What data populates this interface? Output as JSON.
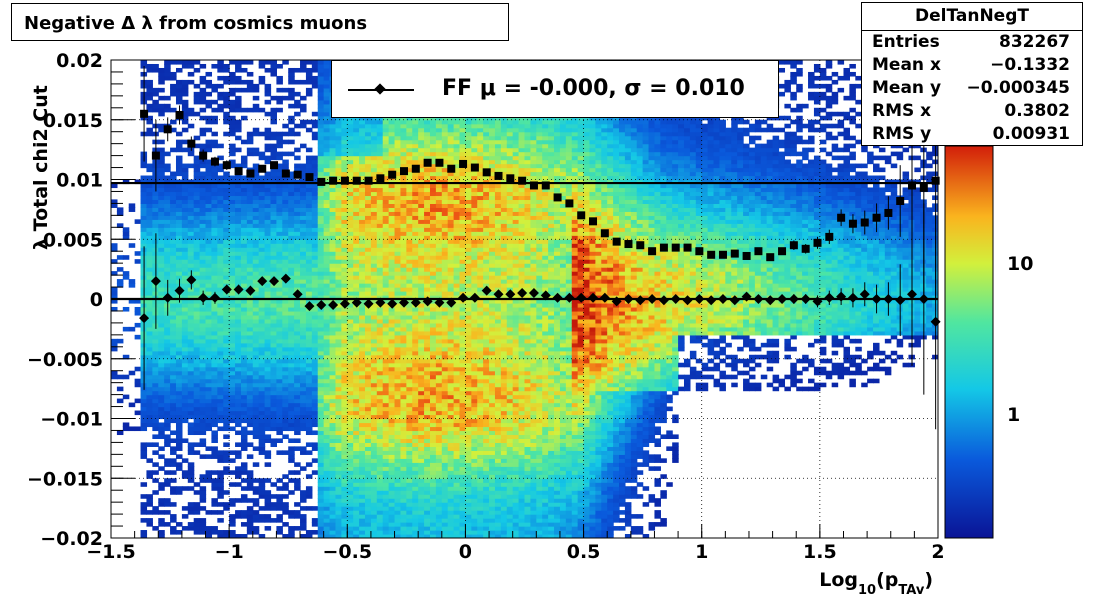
{
  "title": "Negative Δ λ from cosmics muons",
  "stats": {
    "name": "DelTanNegT",
    "rows": [
      {
        "key": "Entries",
        "value": "832267"
      },
      {
        "key": "Mean x",
        "value": "−0.1332"
      },
      {
        "key": "Mean y",
        "value": "−0.000345"
      },
      {
        "key": "RMS x",
        "value": "0.3802"
      },
      {
        "key": "RMS y",
        "value": "0.00931"
      }
    ]
  },
  "legend": {
    "label": "FF μ = -0.000, σ =   0.010"
  },
  "colors": {
    "marker": "#000000",
    "hot": "#c81e0a",
    "cold": "#0a1496"
  },
  "chart_data": {
    "type": "heatmap",
    "title": "Negative Δ λ from cosmics muons",
    "xlabel_main": "Log",
    "xlabel_sub": "10",
    "xlabel_rest": "(p",
    "xlabel_sub2": "TAv",
    "xlabel_close": ")",
    "ylabel": "λ Total chi2 Cut",
    "xlim": [
      -1.5,
      2
    ],
    "ylim": [
      -0.02,
      0.02
    ],
    "x_ticks": [
      {
        "v": -1.5,
        "label": "−1.5"
      },
      {
        "v": -1,
        "label": "−1"
      },
      {
        "v": -0.5,
        "label": "−0.5"
      },
      {
        "v": 0,
        "label": "0"
      },
      {
        "v": 0.5,
        "label": "0.5"
      },
      {
        "v": 1,
        "label": "1"
      },
      {
        "v": 1.5,
        "label": "1.5"
      },
      {
        "v": 2,
        "label": "2"
      }
    ],
    "y_ticks": [
      {
        "v": 0.02,
        "label": "0.02"
      },
      {
        "v": 0.015,
        "label": "0.015"
      },
      {
        "v": 0.01,
        "label": "0.01"
      },
      {
        "v": 0.005,
        "label": "0.005"
      },
      {
        "v": 0,
        "label": "0"
      },
      {
        "v": -0.005,
        "label": "−0.005"
      },
      {
        "v": -0.01,
        "label": "−0.01"
      },
      {
        "v": -0.015,
        "label": "−0.015"
      },
      {
        "v": -0.02,
        "label": "−0.02"
      }
    ],
    "z_scale": "log",
    "z_ticks": [
      {
        "v": 1,
        "label": "1"
      },
      {
        "v": 10,
        "label": "10"
      }
    ],
    "grid": true,
    "fit_lines": [
      0.0097,
      0.0
    ],
    "series": [
      {
        "role": "sigma",
        "marker": "square",
        "x": [
          -1.36,
          -1.31,
          -1.26,
          -1.21,
          -1.16,
          -1.11,
          -1.06,
          -1.01,
          -0.96,
          -0.91,
          -0.86,
          -0.81,
          -0.76,
          -0.71,
          -0.66,
          -0.61,
          -0.56,
          -0.51,
          -0.46,
          -0.41,
          -0.36,
          -0.31,
          -0.26,
          -0.21,
          -0.16,
          -0.11,
          -0.06,
          -0.01,
          0.04,
          0.09,
          0.14,
          0.19,
          0.24,
          0.29,
          0.34,
          0.39,
          0.44,
          0.49,
          0.54,
          0.59,
          0.64,
          0.69,
          0.74,
          0.79,
          0.84,
          0.89,
          0.94,
          0.99,
          1.04,
          1.09,
          1.14,
          1.19,
          1.24,
          1.29,
          1.34,
          1.39,
          1.44,
          1.49,
          1.54,
          1.59,
          1.64,
          1.69,
          1.74,
          1.79,
          1.84,
          1.89,
          1.94,
          1.99
        ],
        "y": [
          0.0155,
          0.012,
          0.0142,
          0.0154,
          0.013,
          0.012,
          0.0115,
          0.0112,
          0.0107,
          0.0105,
          0.0109,
          0.0112,
          0.0105,
          0.0104,
          0.0102,
          0.0098,
          0.0099,
          0.0099,
          0.0099,
          0.0099,
          0.0101,
          0.0104,
          0.0107,
          0.0109,
          0.0114,
          0.0114,
          0.0109,
          0.0113,
          0.011,
          0.0106,
          0.0103,
          0.0101,
          0.0099,
          0.0095,
          0.0095,
          0.0085,
          0.008,
          0.007,
          0.0065,
          0.0055,
          0.0048,
          0.0046,
          0.0045,
          0.004,
          0.0043,
          0.0043,
          0.0043,
          0.004,
          0.0037,
          0.0037,
          0.0038,
          0.0036,
          0.004,
          0.0035,
          0.004,
          0.0045,
          0.0042,
          0.0047,
          0.0052,
          0.0068,
          0.0063,
          0.0064,
          0.0068,
          0.0072,
          0.0082,
          0.0095,
          0.0093,
          0.0099
        ],
        "err": [
          0.004,
          0.003,
          0.001,
          0.0008,
          0.0006,
          0.0005,
          0.0004,
          0.0004,
          0.0003,
          0.0003,
          0.0003,
          0.0003,
          0.0003,
          0.0002,
          0.0002,
          0.0002,
          0.0002,
          0.0002,
          0.0002,
          0.0002,
          0.0002,
          0.0002,
          0.0002,
          0.0002,
          0.0002,
          0.0002,
          0.0002,
          0.0002,
          0.0002,
          0.0002,
          0.0002,
          0.0002,
          0.0002,
          0.0002,
          0.0002,
          0.0002,
          0.0002,
          0.0002,
          0.0002,
          0.0002,
          0.0002,
          0.0002,
          0.0002,
          0.0002,
          0.0002,
          0.0002,
          0.0002,
          0.0002,
          0.0002,
          0.0002,
          0.0002,
          0.0002,
          0.0003,
          0.0003,
          0.0003,
          0.0004,
          0.0004,
          0.0005,
          0.0006,
          0.0007,
          0.0008,
          0.001,
          0.0012,
          0.0014,
          0.003,
          0.006,
          0.009,
          0.01
        ]
      },
      {
        "role": "mean",
        "marker": "diamond",
        "x": [
          -1.36,
          -1.31,
          -1.26,
          -1.21,
          -1.16,
          -1.11,
          -1.06,
          -1.01,
          -0.96,
          -0.91,
          -0.86,
          -0.81,
          -0.76,
          -0.71,
          -0.66,
          -0.61,
          -0.56,
          -0.51,
          -0.46,
          -0.41,
          -0.36,
          -0.31,
          -0.26,
          -0.21,
          -0.16,
          -0.11,
          -0.06,
          -0.01,
          0.04,
          0.09,
          0.14,
          0.19,
          0.24,
          0.29,
          0.34,
          0.39,
          0.44,
          0.49,
          0.54,
          0.59,
          0.64,
          0.69,
          0.74,
          0.79,
          0.84,
          0.89,
          0.94,
          0.99,
          1.04,
          1.09,
          1.14,
          1.19,
          1.24,
          1.29,
          1.34,
          1.39,
          1.44,
          1.49,
          1.54,
          1.59,
          1.64,
          1.69,
          1.74,
          1.79,
          1.84,
          1.89,
          1.94,
          1.99
        ],
        "y": [
          -0.0016,
          0.0015,
          0.0001,
          0.0007,
          0.0016,
          0.0001,
          0.0001,
          0.0008,
          0.0008,
          0.0007,
          0.0015,
          0.0015,
          0.0017,
          0.0004,
          -0.0006,
          -0.0005,
          -0.0005,
          -0.0004,
          -0.0003,
          -0.0004,
          -0.0003,
          -0.0004,
          -0.0003,
          -0.0003,
          -0.0002,
          -0.0003,
          -0.0003,
          0.0001,
          0.0001,
          0.0007,
          0.0004,
          0.0004,
          0.0005,
          0.0005,
          0.0003,
          0.0001,
          0.0001,
          0.0001,
          0.0001,
          0.0001,
          -0.0002,
          0.0,
          -0.0001,
          0.0,
          -0.0001,
          0.0,
          -0.0001,
          0.0,
          -0.0001,
          0.0,
          -0.0001,
          0.0002,
          0.0,
          -0.0001,
          0.0,
          0.0,
          0.0,
          -0.0002,
          0.0001,
          0.0002,
          0.0001,
          0.0004,
          0.0,
          0.0,
          -0.0001,
          0.0004,
          0.0,
          -0.0019
        ],
        "err": [
          0.006,
          0.004,
          0.0015,
          0.001,
          0.0008,
          0.0006,
          0.0005,
          0.0004,
          0.0004,
          0.0004,
          0.0003,
          0.0003,
          0.0003,
          0.0002,
          0.0002,
          0.0002,
          0.0002,
          0.0002,
          0.0002,
          0.0002,
          0.0002,
          0.0002,
          0.0002,
          0.0002,
          0.0002,
          0.0002,
          0.0002,
          0.0002,
          0.0002,
          0.0002,
          0.0002,
          0.0002,
          0.0002,
          0.0002,
          0.0002,
          0.0002,
          0.0002,
          0.0002,
          0.0002,
          0.0002,
          0.0002,
          0.0002,
          0.0002,
          0.0002,
          0.0002,
          0.0002,
          0.0002,
          0.0002,
          0.0002,
          0.0002,
          0.0002,
          0.0002,
          0.0003,
          0.0003,
          0.0003,
          0.0004,
          0.0004,
          0.0005,
          0.0006,
          0.0007,
          0.0008,
          0.001,
          0.0012,
          0.0014,
          0.003,
          0.006,
          0.008,
          0.009
        ]
      }
    ]
  }
}
